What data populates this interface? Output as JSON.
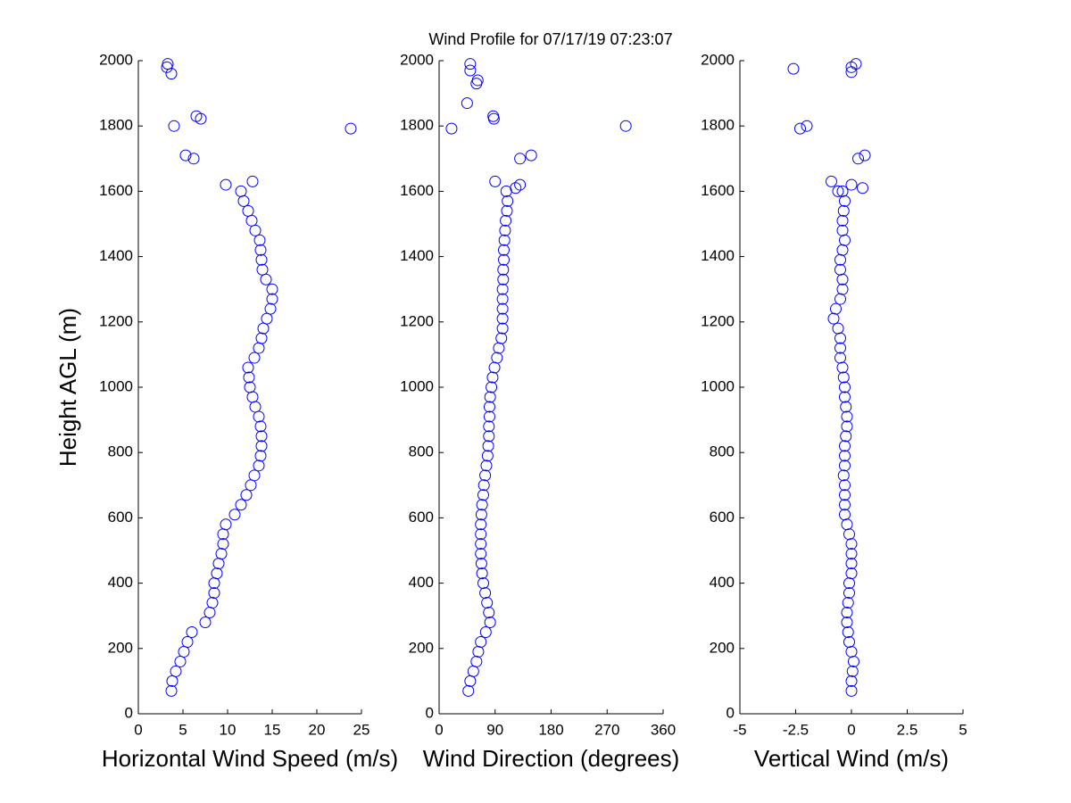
{
  "chart_data": [
    {
      "type": "scatter",
      "title": "Wind Profile for  07/17/19 07:23:07",
      "xlabel": "Horizontal Wind Speed (m/s)",
      "ylabel": "Height AGL (m)",
      "color": "#0000ff",
      "xlim": [
        0,
        25
      ],
      "ylim": [
        0,
        2000
      ],
      "xticks": [
        0,
        5,
        10,
        15,
        20,
        25
      ],
      "yticks": [
        0,
        200,
        400,
        600,
        800,
        1000,
        1200,
        1400,
        1600,
        1800,
        2000
      ],
      "x": [
        3.7,
        3.8,
        4.2,
        4.7,
        5.1,
        5.5,
        6.0,
        7.5,
        8.0,
        8.3,
        8.5,
        8.5,
        8.8,
        9.0,
        9.3,
        9.5,
        9.5,
        9.8,
        10.8,
        11.5,
        12.1,
        12.6,
        13.0,
        13.5,
        13.7,
        13.8,
        13.8,
        13.7,
        13.5,
        13.1,
        12.8,
        12.5,
        12.4,
        12.3,
        13.0,
        13.5,
        13.8,
        14.0,
        14.4,
        14.8,
        15.0,
        15.0,
        14.3,
        13.9,
        13.8,
        13.7,
        13.6,
        13.1,
        12.7,
        12.3,
        11.8,
        11.5,
        9.8,
        12.8,
        5.3,
        6.2,
        4.0,
        23.8,
        6.5,
        7.0,
        3.7,
        3.2,
        3.3
      ],
      "y": [
        70,
        100,
        130,
        160,
        190,
        220,
        250,
        280,
        310,
        340,
        370,
        400,
        430,
        460,
        490,
        520,
        550,
        580,
        610,
        640,
        670,
        700,
        730,
        760,
        790,
        820,
        850,
        880,
        910,
        940,
        970,
        1000,
        1030,
        1060,
        1090,
        1120,
        1150,
        1180,
        1210,
        1240,
        1270,
        1300,
        1330,
        1360,
        1390,
        1420,
        1450,
        1480,
        1510,
        1540,
        1570,
        1600,
        1620,
        1630,
        1710,
        1700,
        1800,
        1792,
        1830,
        1822,
        1960,
        1980,
        1990
      ]
    },
    {
      "type": "scatter",
      "xlabel": "Wind Direction (degrees)",
      "color": "#0000ff",
      "xlim": [
        0,
        360
      ],
      "ylim": [
        0,
        2000
      ],
      "xticks": [
        0,
        90,
        180,
        270,
        360
      ],
      "yticks": [
        0,
        200,
        400,
        600,
        800,
        1000,
        1200,
        1400,
        1600,
        1800,
        2000
      ],
      "x": [
        47,
        50,
        55,
        60,
        63,
        67,
        75,
        82,
        80,
        77,
        74,
        71,
        69,
        68,
        67,
        67,
        67,
        67,
        68,
        69,
        71,
        72,
        74,
        76,
        78,
        79,
        80,
        80,
        81,
        81,
        82,
        84,
        86,
        89,
        93,
        96,
        100,
        102,
        102,
        102,
        102,
        102,
        103,
        103,
        104,
        104,
        105,
        106,
        107,
        109,
        110,
        108,
        90,
        123,
        130,
        130,
        148,
        300,
        20,
        45,
        87,
        88,
        60,
        62,
        50,
        50
      ],
      "y": [
        70,
        100,
        130,
        160,
        190,
        220,
        250,
        280,
        310,
        340,
        370,
        400,
        430,
        460,
        490,
        520,
        550,
        580,
        610,
        640,
        670,
        700,
        730,
        760,
        790,
        820,
        850,
        880,
        910,
        940,
        970,
        1000,
        1030,
        1060,
        1090,
        1120,
        1150,
        1180,
        1210,
        1240,
        1270,
        1300,
        1330,
        1360,
        1390,
        1420,
        1450,
        1480,
        1510,
        1540,
        1570,
        1600,
        1630,
        1610,
        1620,
        1700,
        1710,
        1800,
        1792,
        1870,
        1830,
        1822,
        1930,
        1940,
        1970,
        1990
      ]
    },
    {
      "type": "scatter",
      "xlabel": "Vertical Wind (m/s)",
      "color": "#0000ff",
      "xlim": [
        -5,
        5
      ],
      "ylim": [
        0,
        2000
      ],
      "xticks": [
        -5,
        -2.5,
        0,
        2.5,
        5
      ],
      "yticks": [
        0,
        200,
        400,
        600,
        800,
        1000,
        1200,
        1400,
        1600,
        1800,
        2000
      ],
      "x": [
        0,
        0,
        0.05,
        0.1,
        0,
        -0.1,
        -0.15,
        -0.2,
        -0.2,
        -0.15,
        -0.1,
        -0.1,
        0,
        0,
        0,
        0,
        -0.1,
        -0.2,
        -0.3,
        -0.3,
        -0.3,
        -0.3,
        -0.35,
        -0.3,
        -0.3,
        -0.3,
        -0.25,
        -0.2,
        -0.2,
        -0.25,
        -0.3,
        -0.3,
        -0.35,
        -0.4,
        -0.5,
        -0.5,
        -0.5,
        -0.6,
        -0.8,
        -0.7,
        -0.5,
        -0.4,
        -0.4,
        -0.5,
        -0.5,
        -0.4,
        -0.3,
        -0.4,
        -0.4,
        -0.35,
        -0.3,
        -0.4,
        -0.9,
        -0.6,
        0,
        0.5,
        0.3,
        0.6,
        -2.0,
        -2.3,
        -2.6,
        0.2,
        0,
        0
      ],
      "y": [
        70,
        100,
        130,
        160,
        190,
        220,
        250,
        280,
        310,
        340,
        370,
        400,
        430,
        460,
        490,
        520,
        550,
        580,
        610,
        640,
        670,
        700,
        730,
        760,
        790,
        820,
        850,
        880,
        910,
        940,
        970,
        1000,
        1030,
        1060,
        1090,
        1120,
        1150,
        1180,
        1210,
        1240,
        1270,
        1300,
        1330,
        1360,
        1390,
        1420,
        1450,
        1480,
        1510,
        1540,
        1570,
        1600,
        1630,
        1600,
        1620,
        1610,
        1700,
        1710,
        1800,
        1792,
        1975,
        1990,
        1980,
        1965
      ]
    }
  ]
}
